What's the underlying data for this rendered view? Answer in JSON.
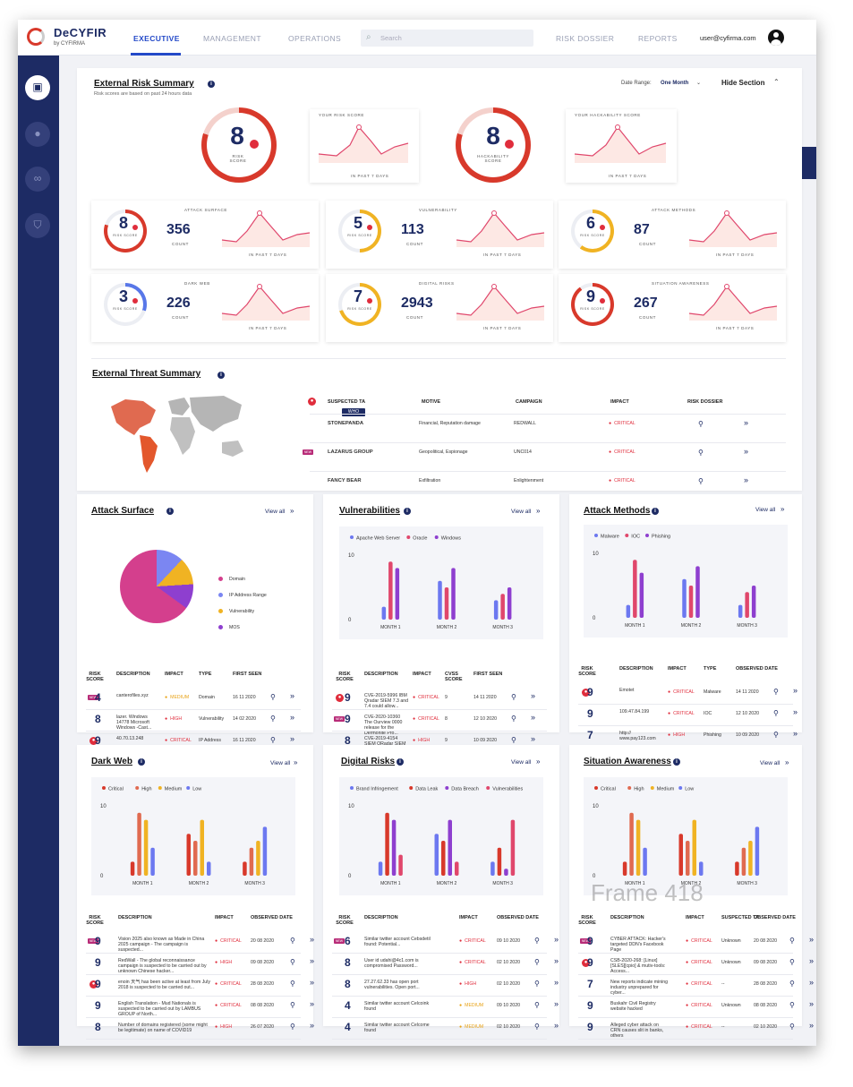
{
  "brand": {
    "name": "DeCYFIR",
    "sub": "by CYFIRMA"
  },
  "nav": {
    "executive": "EXECUTIVE",
    "management": "MANAGEMENT",
    "operations": "OPERATIONS",
    "search_placeholder": "Search",
    "risk_dossier": "RISK DOSSIER",
    "reports": "REPORTS",
    "user_email": "user@cyfirma.com"
  },
  "colors": {
    "navy": "#1d2b64",
    "accent": "#2349c8",
    "critical": "#e02d3c",
    "medium": "#e8a317"
  },
  "ers": {
    "title": "External Risk Summary",
    "subtitle": "Risk scores are based on past 24 hours data",
    "date_range_label": "Date Range:",
    "date_range_value": "One Month",
    "hide_section": "Hide Section",
    "risk_score": "8",
    "risk_score_label": "RISK SCORE",
    "your_risk_score": "YOUR RISK SCORE",
    "hackability_score": "8",
    "hackability_label": "HACKABILITY SCORE",
    "your_hackability": "YOUR HACKABILITY SCORE",
    "in_past_7_days": "IN PAST 7 DAYS",
    "count_label": "COUNT",
    "risk_label": "RISK SCORE",
    "tiles": [
      {
        "name": "ATTACK SURFACE",
        "score": "8",
        "count": "356",
        "color": "#d8392b",
        "fraction": 0.8
      },
      {
        "name": "VULNERABILITY",
        "score": "5",
        "count": "113",
        "color": "#f0b323",
        "fraction": 0.5
      },
      {
        "name": "ATTACK METHODS",
        "score": "6",
        "count": "87",
        "color": "#f0b323",
        "fraction": 0.6
      },
      {
        "name": "DARK WEB",
        "score": "3",
        "count": "226",
        "color": "#5877e8",
        "fraction": 0.3
      },
      {
        "name": "DIGITAL RISKS",
        "score": "7",
        "count": "2943",
        "color": "#f0b323",
        "fraction": 0.7
      },
      {
        "name": "SITUATION AWARENESS",
        "score": "9",
        "count": "267",
        "color": "#d8392b",
        "fraction": 0.9
      }
    ]
  },
  "ets": {
    "title": "External Threat Summary",
    "headers": [
      "SUSPECTED TA",
      "MOTIVE",
      "CAMPAIGN",
      "IMPACT",
      "RISK DOSSIER"
    ],
    "who_badge": "WHO",
    "rows": [
      {
        "ta": "STONEPANDA",
        "motive": "Financial, Reputation damage",
        "campaign": "REDWALL",
        "impact": "CRITICAL"
      },
      {
        "ta": "LAZARUS GROUP",
        "motive": "Geopolitical, Espionage",
        "campaign": "UNC014",
        "impact": "CRITICAL"
      },
      {
        "ta": "FANCY BEAR",
        "motive": "Exfiltration",
        "campaign": "Enlightenment",
        "impact": "CRITICAL"
      }
    ]
  },
  "view_all": "View all",
  "new_badge": "NEW",
  "attack_surface": {
    "title": "Attack Surface",
    "legend": [
      "Domain",
      "IP Address Range",
      "Vulnerability",
      "MOS"
    ],
    "legend_colors": [
      "#d43f8d",
      "#7b86f2",
      "#f0b323",
      "#8e3fcf"
    ],
    "headers": [
      "RISK SCORE",
      "DESCRIPTION",
      "IMPACT",
      "TYPE",
      "FIRST SEEN"
    ],
    "rows": [
      {
        "score": "4",
        "desc": "canterofiles.xyz",
        "impact": "MEDIUM",
        "type": "Domain",
        "date": "16 11 2020"
      },
      {
        "score": "8",
        "desc": "lazer. Windows 14778 Microsoft Windows -Cast...",
        "impact": "HIGH",
        "type": "Vulnerability",
        "date": "14 02 2020"
      },
      {
        "score": "9",
        "desc": "40.70.13.248",
        "impact": "CRITICAL",
        "type": "IP Address",
        "date": "16 11 2020"
      }
    ]
  },
  "vulnerabilities": {
    "title": "Vulnerabilities",
    "legend": [
      "Apache Web Server",
      "Oracle",
      "Windows"
    ],
    "headers": [
      "RISK SCORE",
      "DESCRIPTION",
      "IMPACT",
      "CVSS SCORE",
      "FIRST SEEN"
    ],
    "rows": [
      {
        "score": "9",
        "desc": "CVE-2019-5996 IBM Qradar SIEM 7.3 and 7.4 could allow...",
        "impact": "CRITICAL",
        "cvss": "9",
        "date": "14 11 2020"
      },
      {
        "score": "9",
        "desc": "CVE-2020-10360 The Ourview 0000 release for the Dermonite Pro...",
        "impact": "CRITICAL",
        "cvss": "8",
        "date": "12 10 2020"
      },
      {
        "score": "8",
        "desc": "CVE-2019-4154 SIEM QRadar SIEM 7.3...",
        "impact": "HIGH",
        "cvss": "9",
        "date": "10 09 2020"
      }
    ]
  },
  "attack_methods": {
    "title": "Attack Methods",
    "legend": [
      "Malware",
      "IOC",
      "Phishing"
    ],
    "headers": [
      "RISK SCORE",
      "DESCRIPTION",
      "IMPACT",
      "TYPE",
      "OBSERVED DATE"
    ],
    "rows": [
      {
        "score": "9",
        "desc": "Emotet",
        "impact": "CRITICAL",
        "type": "Malware",
        "date": "14 11 2020"
      },
      {
        "score": "9",
        "desc": "109.47.84.199",
        "impact": "CRITICAL",
        "type": "IOC",
        "date": "12 10 2020"
      },
      {
        "score": "7",
        "desc": "http:// www.pay123.com",
        "impact": "HIGH",
        "type": "Phishing",
        "date": "10 09 2020"
      }
    ]
  },
  "dark_web": {
    "title": "Dark Web",
    "legend": [
      "Critical",
      "High",
      "Medium",
      "Low"
    ],
    "headers": [
      "RISK SCORE",
      "DESCRIPTION",
      "IMPACT",
      "OBSERVED DATE"
    ],
    "rows": [
      {
        "score": "9",
        "desc": "Vision 2025 also known as Made in China 2025 campaign - The campaign is suspected...",
        "impact": "CRITICAL",
        "date": "20 08 2020"
      },
      {
        "score": "9",
        "desc": "RedWall - The global reconnaissance campaign is suspected to be carried out by unknown Chinese hacker...",
        "impact": "HIGH",
        "date": "09 08 2020"
      },
      {
        "score": "9",
        "desc": "enoin 天气 has been active at least from July 2018 is suspected to be carried out...",
        "impact": "CRITICAL",
        "date": "28 08 2020"
      },
      {
        "score": "9",
        "desc": "English Translation - Mud Nationals is suspected to be carried out by LAMBUS GROUP of North...",
        "impact": "CRITICAL",
        "date": "08 08 2020"
      },
      {
        "score": "8",
        "desc": "Number of domains registered (some might be legitimate) on name of COVID19",
        "impact": "HIGH",
        "date": "26 07 2020"
      }
    ]
  },
  "digital_risks": {
    "title": "Digital Risks",
    "legend": [
      "Brand Infringement",
      "Data Leak",
      "Data Breach",
      "Vulnerabilities"
    ],
    "headers": [
      "RISK SCORE",
      "DESCRIPTION",
      "IMPACT",
      "OBSERVED DATE"
    ],
    "rows": [
      {
        "score": "6",
        "desc": "Similar twitter account Cebsdetil found: Potential...",
        "impact": "CRITICAL",
        "date": "09 10 2020"
      },
      {
        "score": "8",
        "desc": "User id udahi@4c1.com is compromised Password...",
        "impact": "CRITICAL",
        "date": "02 10 2020"
      },
      {
        "score": "8",
        "desc": "27.27.62.33 has open port vulnerabilities. Open port...",
        "impact": "HIGH",
        "date": "02 10 2020"
      },
      {
        "score": "4",
        "desc": "Similar twitter account Celcoink found",
        "impact": "MEDIUM",
        "date": "09 10 2020"
      },
      {
        "score": "4",
        "desc": "Similar twitter account Celcome found",
        "impact": "MEDIUM",
        "date": "02 10 2020"
      }
    ]
  },
  "situation_awareness": {
    "title": "Situation Awareness",
    "legend": [
      "Critical",
      "High",
      "Medium",
      "Low"
    ],
    "headers": [
      "RISK SCORE",
      "DESCRIPTION",
      "IMPACT",
      "SUSPECTED TA",
      "OBSERVED DATE"
    ],
    "rows": [
      {
        "score": "9",
        "desc": "CYBER ATTACK: Hacker's targeted DDN's Facebook Page",
        "impact": "CRITICAL",
        "ta": "Unknown",
        "date": "20 08 2020"
      },
      {
        "score": "9",
        "desc": "CSB-2020-268: [Linux][SLES][cpio] & mutiv-tools: Access...",
        "impact": "CRITICAL",
        "ta": "Unknown",
        "date": "09 08 2020"
      },
      {
        "score": "7",
        "desc": "New reports indicate mining industry unprepared for cyber...",
        "impact": "CRITICAL",
        "ta": "--",
        "date": "28 08 2020"
      },
      {
        "score": "9",
        "desc": "Buskahr Civil Registry website hacked",
        "impact": "CRITICAL",
        "ta": "Unknown",
        "date": "08 08 2020"
      },
      {
        "score": "9",
        "desc": "Alleged cyber attack on CRN causes slit in banks, others",
        "impact": "CRITICAL",
        "ta": "--",
        "date": "02 10 2020"
      }
    ]
  },
  "frame_label": "Frame 418",
  "chart_data": [
    {
      "type": "bar",
      "title": "Vulnerabilities",
      "categories": [
        "MONTH 1",
        "MONTH 2",
        "MONTH 3"
      ],
      "ylim": [
        0,
        10
      ],
      "ticks": [
        "10",
        "0"
      ],
      "series": [
        {
          "name": "Apache Web Server",
          "color": "#6c78f0",
          "values": [
            2,
            6,
            3
          ]
        },
        {
          "name": "Oracle",
          "color": "#e0476c",
          "values": [
            9,
            5,
            4
          ]
        },
        {
          "name": "Windows",
          "color": "#8e3fcf",
          "values": [
            8,
            8,
            5
          ]
        }
      ]
    },
    {
      "type": "bar",
      "title": "Attack Methods",
      "categories": [
        "MONTH 1",
        "MONTH 2",
        "MONTH 3"
      ],
      "ylim": [
        0,
        10
      ],
      "ticks": [
        "10",
        "0"
      ],
      "series": [
        {
          "name": "Malware",
          "color": "#6c78f0",
          "values": [
            2,
            6,
            2
          ]
        },
        {
          "name": "IOC",
          "color": "#e0476c",
          "values": [
            9,
            5,
            4
          ]
        },
        {
          "name": "Phishing",
          "color": "#8e3fcf",
          "values": [
            7,
            8,
            5
          ]
        }
      ]
    },
    {
      "type": "bar",
      "title": "Dark Web",
      "categories": [
        "MONTH 1",
        "MONTH 2",
        "MONTH 3"
      ],
      "ylim": [
        0,
        10
      ],
      "ticks": [
        "10",
        "0"
      ],
      "series": [
        {
          "name": "Critical",
          "color": "#d8392b",
          "values": [
            2,
            6,
            2
          ]
        },
        {
          "name": "High",
          "color": "#e06a50",
          "values": [
            9,
            5,
            4
          ]
        },
        {
          "name": "Medium",
          "color": "#f0b323",
          "values": [
            8,
            8,
            5
          ]
        },
        {
          "name": "Low",
          "color": "#6c78f0",
          "values": [
            4,
            2,
            7
          ]
        }
      ]
    },
    {
      "type": "bar",
      "title": "Digital Risks",
      "categories": [
        "MONTH 1",
        "MONTH 2",
        "MONTH 3"
      ],
      "ylim": [
        0,
        10
      ],
      "ticks": [
        "10",
        "0"
      ],
      "series": [
        {
          "name": "Brand Infringement",
          "color": "#6c78f0",
          "values": [
            2,
            6,
            2
          ]
        },
        {
          "name": "Data Leak",
          "color": "#d8392b",
          "values": [
            9,
            5,
            4
          ]
        },
        {
          "name": "Data Breach",
          "color": "#8e3fcf",
          "values": [
            8,
            8,
            1
          ]
        },
        {
          "name": "Vulnerabilities",
          "color": "#e0476c",
          "values": [
            3,
            2,
            8
          ]
        }
      ]
    },
    {
      "type": "bar",
      "title": "Situation Awareness",
      "categories": [
        "MONTH 1",
        "MONTH 2",
        "MONTH 3"
      ],
      "ylim": [
        0,
        10
      ],
      "ticks": [
        "10",
        "0"
      ],
      "series": [
        {
          "name": "Critical",
          "color": "#d8392b",
          "values": [
            2,
            6,
            2
          ]
        },
        {
          "name": "High",
          "color": "#e06a50",
          "values": [
            9,
            5,
            4
          ]
        },
        {
          "name": "Medium",
          "color": "#f0b323",
          "values": [
            8,
            8,
            5
          ]
        },
        {
          "name": "Low",
          "color": "#6c78f0",
          "values": [
            4,
            2,
            7
          ]
        }
      ]
    },
    {
      "type": "pie",
      "title": "Attack Surface",
      "labels": [
        "Domain",
        "IP Address Range",
        "Vulnerability",
        "MOS"
      ],
      "values": [
        65,
        12,
        12,
        11
      ]
    },
    {
      "type": "line",
      "title": "Risk score trend (7 days)",
      "x": [
        1,
        2,
        3,
        4,
        5,
        6,
        7
      ],
      "y": [
        6,
        5,
        6,
        9,
        7,
        5,
        6
      ]
    }
  ]
}
